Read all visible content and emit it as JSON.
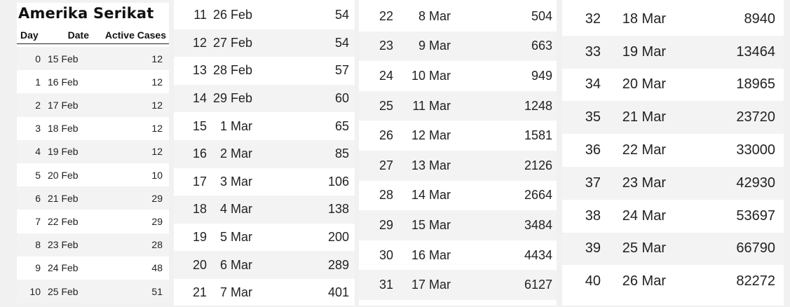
{
  "title": "Amerika Serikat",
  "headers": {
    "day": "Day",
    "date": "Date",
    "active": "Active Cases"
  },
  "rows": [
    {
      "day": "0",
      "date": "15 Feb",
      "active": "12"
    },
    {
      "day": "1",
      "date": "16 Feb",
      "active": "12"
    },
    {
      "day": "2",
      "date": "17 Feb",
      "active": "12"
    },
    {
      "day": "3",
      "date": "18 Feb",
      "active": "12"
    },
    {
      "day": "4",
      "date": "19 Feb",
      "active": "12"
    },
    {
      "day": "5",
      "date": "20 Feb",
      "active": "10"
    },
    {
      "day": "6",
      "date": "21 Feb",
      "active": "29"
    },
    {
      "day": "7",
      "date": "22 Feb",
      "active": "29"
    },
    {
      "day": "8",
      "date": "23 Feb",
      "active": "28"
    },
    {
      "day": "9",
      "date": "24 Feb",
      "active": "48"
    },
    {
      "day": "10",
      "date": "25 Feb",
      "active": "51"
    },
    {
      "day": "11",
      "date": "26 Feb",
      "active": "54"
    },
    {
      "day": "12",
      "date": "27 Feb",
      "active": "54"
    },
    {
      "day": "13",
      "date": "28 Feb",
      "active": "57"
    },
    {
      "day": "14",
      "date": "29 Feb",
      "active": "60"
    },
    {
      "day": "15",
      "date": "1 Mar",
      "active": "65"
    },
    {
      "day": "16",
      "date": "2 Mar",
      "active": "85"
    },
    {
      "day": "17",
      "date": "3 Mar",
      "active": "106"
    },
    {
      "day": "18",
      "date": "4 Mar",
      "active": "138"
    },
    {
      "day": "19",
      "date": "5 Mar",
      "active": "200"
    },
    {
      "day": "20",
      "date": "6 Mar",
      "active": "289"
    },
    {
      "day": "21",
      "date": "7 Mar",
      "active": "401"
    },
    {
      "day": "22",
      "date": "8 Mar",
      "active": "504"
    },
    {
      "day": "23",
      "date": "9 Mar",
      "active": "663"
    },
    {
      "day": "24",
      "date": "10 Mar",
      "active": "949"
    },
    {
      "day": "25",
      "date": "11 Mar",
      "active": "1248"
    },
    {
      "day": "26",
      "date": "12 Mar",
      "active": "1581"
    },
    {
      "day": "27",
      "date": "13 Mar",
      "active": "2126"
    },
    {
      "day": "28",
      "date": "14 Mar",
      "active": "2664"
    },
    {
      "day": "29",
      "date": "15 Mar",
      "active": "3484"
    },
    {
      "day": "30",
      "date": "16 Mar",
      "active": "4434"
    },
    {
      "day": "31",
      "date": "17 Mar",
      "active": "6127"
    },
    {
      "day": "32",
      "date": "18 Mar",
      "active": "8940"
    },
    {
      "day": "33",
      "date": "19 Mar",
      "active": "13464"
    },
    {
      "day": "34",
      "date": "20 Mar",
      "active": "18965"
    },
    {
      "day": "35",
      "date": "21 Mar",
      "active": "23720"
    },
    {
      "day": "36",
      "date": "22 Mar",
      "active": "33000"
    },
    {
      "day": "37",
      "date": "23 Mar",
      "active": "42930"
    },
    {
      "day": "38",
      "date": "24 Mar",
      "active": "53697"
    },
    {
      "day": "39",
      "date": "25 Mar",
      "active": "66790"
    },
    {
      "day": "40",
      "date": "26 Mar",
      "active": "82272"
    }
  ]
}
